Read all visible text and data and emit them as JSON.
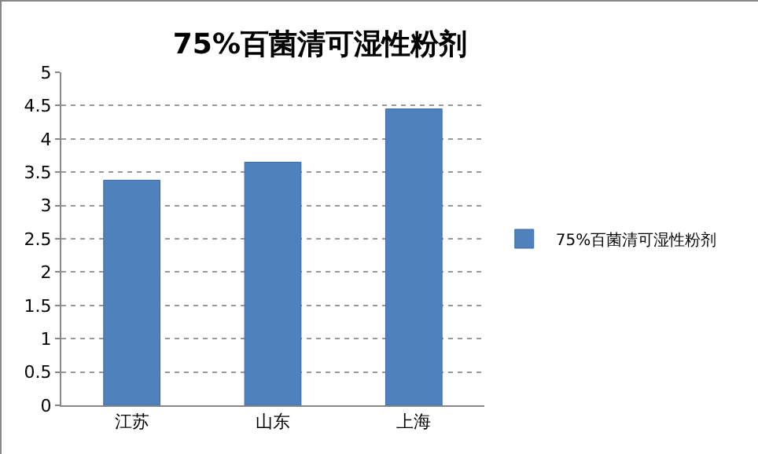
{
  "chart_data": {
    "type": "bar",
    "title": "75%百菌清可湿性粉剂",
    "categories": [
      "江苏",
      "山东",
      "上海"
    ],
    "series": [
      {
        "name": "75%百菌清可湿性粉剂",
        "color": "#4f81bd",
        "values": [
          3.38,
          3.65,
          4.45
        ]
      }
    ],
    "ylim": [
      0,
      5
    ],
    "yticks": [
      0,
      0.5,
      1,
      1.5,
      2,
      2.5,
      3,
      3.5,
      4,
      4.5,
      5
    ],
    "grid": "y",
    "legend": "right"
  }
}
